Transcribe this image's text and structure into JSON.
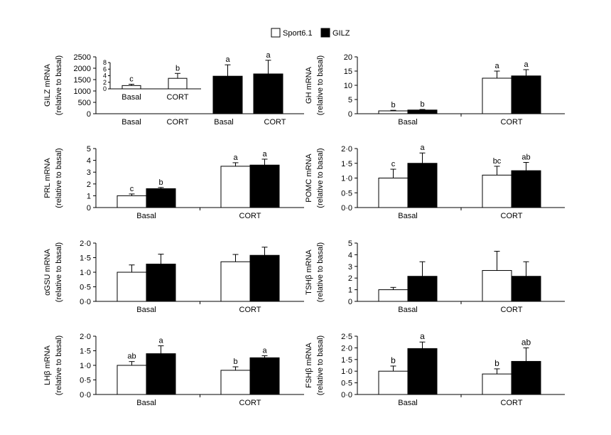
{
  "legend": {
    "items": [
      {
        "label": "Sport6.1",
        "color": "#ffffff"
      },
      {
        "label": "GILZ",
        "color": "#000000"
      }
    ]
  },
  "colors": {
    "sport": "#ffffff",
    "gilz": "#000000",
    "axis": "#000000"
  },
  "chart_data": [
    {
      "id": "gilz",
      "type": "bar",
      "ylabel": [
        "GILZ mRNA",
        "(relative to basal)"
      ],
      "yticks": [
        "0",
        "500",
        "1000",
        "1500",
        "2000",
        "2500"
      ],
      "ylim": [
        0,
        2500
      ],
      "categories": [
        "Basal",
        "CORT"
      ],
      "series": [
        {
          "name": "GILZ",
          "values": [
            1650,
            1750
          ],
          "errors": [
            500,
            600
          ],
          "letters": [
            "a",
            "a"
          ]
        }
      ],
      "inset": {
        "yticks": [
          "0",
          "2",
          "4",
          "6",
          "8"
        ],
        "ylim": [
          0,
          8
        ],
        "categories": [
          "Basal",
          "CORT"
        ],
        "series": [
          {
            "name": "Sport6.1",
            "values": [
              1,
              3.2
            ],
            "errors": [
              0.4,
              1.5
            ],
            "letters": [
              "c",
              "b"
            ]
          }
        ]
      }
    },
    {
      "id": "gh",
      "type": "bar",
      "ylabel": [
        "GH mRNA",
        "(relative to basal)"
      ],
      "yticks": [
        "0",
        "5",
        "10",
        "15",
        "20"
      ],
      "ylim": [
        0,
        20
      ],
      "categories": [
        "Basal",
        "CORT"
      ],
      "series": [
        {
          "name": "Sport6.1",
          "values": [
            1,
            12.5
          ],
          "errors": [
            0.2,
            2.5
          ],
          "letters": [
            "b",
            "a"
          ]
        },
        {
          "name": "GILZ",
          "values": [
            1.3,
            13.3
          ],
          "errors": [
            0.2,
            2.2
          ],
          "letters": [
            "b",
            "a"
          ]
        }
      ]
    },
    {
      "id": "prl",
      "type": "bar",
      "ylabel": [
        "PRL mRNA",
        "(relative to basal)"
      ],
      "yticks": [
        "0",
        "1",
        "2",
        "3",
        "4",
        "5"
      ],
      "ylim": [
        0,
        5
      ],
      "categories": [
        "Basal",
        "CORT"
      ],
      "series": [
        {
          "name": "Sport6.1",
          "values": [
            1,
            3.5
          ],
          "errors": [
            0.15,
            0.3
          ],
          "letters": [
            "c",
            "a"
          ]
        },
        {
          "name": "GILZ",
          "values": [
            1.6,
            3.6
          ],
          "errors": [
            0.1,
            0.5
          ],
          "letters": [
            "b",
            "a"
          ]
        }
      ]
    },
    {
      "id": "pomc",
      "type": "bar",
      "ylabel": [
        "POMC mRNA",
        "(relative to basal)"
      ],
      "yticks": [
        "0·0",
        "0·5",
        "1·0",
        "1·5",
        "2·0"
      ],
      "ylim": [
        0,
        2
      ],
      "categories": [
        "Basal",
        "CORT"
      ],
      "series": [
        {
          "name": "Sport6.1",
          "values": [
            1,
            1.1
          ],
          "errors": [
            0.3,
            0.3
          ],
          "letters": [
            "c",
            "bc"
          ]
        },
        {
          "name": "GILZ",
          "values": [
            1.5,
            1.25
          ],
          "errors": [
            0.35,
            0.28
          ],
          "letters": [
            "a",
            "ab"
          ]
        }
      ]
    },
    {
      "id": "agsu",
      "type": "bar",
      "ylabel": [
        "αGSU mRNA",
        "(relative to basal)"
      ],
      "yticks": [
        "0·0",
        "0·5",
        "1·0",
        "1·5",
        "2·0"
      ],
      "ylim": [
        0,
        2
      ],
      "categories": [
        "Basal",
        "CORT"
      ],
      "series": [
        {
          "name": "Sport6.1",
          "values": [
            1,
            1.36
          ],
          "errors": [
            0.25,
            0.25
          ],
          "letters": [
            "",
            ""
          ]
        },
        {
          "name": "GILZ",
          "values": [
            1.28,
            1.58
          ],
          "errors": [
            0.34,
            0.28
          ],
          "letters": [
            "",
            ""
          ]
        }
      ]
    },
    {
      "id": "tshb",
      "type": "bar",
      "ylabel": [
        "TSHβ mRNA",
        "(relative to basal)"
      ],
      "yticks": [
        "0",
        "1",
        "2",
        "3",
        "4",
        "5"
      ],
      "ylim": [
        0,
        5
      ],
      "categories": [
        "Basal",
        "CORT"
      ],
      "series": [
        {
          "name": "Sport6.1",
          "values": [
            1,
            2.65
          ],
          "errors": [
            0.2,
            1.65
          ],
          "letters": [
            "",
            ""
          ]
        },
        {
          "name": "GILZ",
          "values": [
            2.15,
            2.15
          ],
          "errors": [
            1.25,
            1.25
          ],
          "letters": [
            "",
            ""
          ]
        }
      ]
    },
    {
      "id": "lhb",
      "type": "bar",
      "ylabel": [
        "LHβ mRNA",
        "(relative to basal)"
      ],
      "yticks": [
        "0·0",
        "0·5",
        "1·0",
        "1·5",
        "2·0"
      ],
      "ylim": [
        0,
        2
      ],
      "categories": [
        "Basal",
        "CORT"
      ],
      "series": [
        {
          "name": "Sport6.1",
          "values": [
            1,
            0.83
          ],
          "errors": [
            0.13,
            0.12
          ],
          "letters": [
            "ab",
            "b"
          ]
        },
        {
          "name": "GILZ",
          "values": [
            1.4,
            1.26
          ],
          "errors": [
            0.27,
            0.07
          ],
          "letters": [
            "a",
            "a"
          ]
        }
      ]
    },
    {
      "id": "fshb",
      "type": "bar",
      "ylabel": [
        "FSHβ mRNA",
        "(relative to basal)"
      ],
      "yticks": [
        "0·0",
        "0·5",
        "1·0",
        "1·5",
        "2·0",
        "2·5"
      ],
      "ylim": [
        0,
        2.5
      ],
      "categories": [
        "Basal",
        "CORT"
      ],
      "series": [
        {
          "name": "Sport6.1",
          "values": [
            1,
            0.88
          ],
          "errors": [
            0.22,
            0.22
          ],
          "letters": [
            "b",
            "b"
          ]
        },
        {
          "name": "GILZ",
          "values": [
            1.97,
            1.42
          ],
          "errors": [
            0.28,
            0.58
          ],
          "letters": [
            "a",
            "ab"
          ]
        }
      ]
    }
  ]
}
